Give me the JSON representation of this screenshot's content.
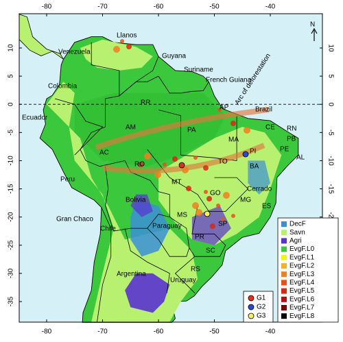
{
  "lon_ticks": [
    -80,
    -70,
    -60,
    -50,
    -40
  ],
  "lat_ticks": [
    10,
    5,
    0,
    -5,
    -10,
    -15,
    -20,
    -25,
    -30,
    -35
  ],
  "north": "N",
  "labels": [
    "Llanos",
    "Venezuela",
    "Guyana",
    "Suriname",
    "French Guiana",
    "Colombia",
    "RR",
    "AP",
    "Brazil",
    "Ecuador",
    "AM",
    "PA",
    "MA",
    "CE",
    "RN",
    "PB",
    "PE",
    "AL",
    "PI",
    "TO",
    "BA",
    "AC",
    "RO",
    "MT",
    "Peru",
    "Cerrado",
    "GO",
    "MG",
    "ES",
    "Bolivia",
    "MS",
    "SP",
    "Gran Chaco",
    "Paraguay",
    "Chile",
    "PR",
    "SC",
    "Argentina",
    "RS",
    "Uruguay",
    "Arc of deforestation"
  ],
  "legend": [
    {
      "name": "DecF",
      "color": "#3a8fd8"
    },
    {
      "name": "Savn",
      "color": "#b8f070"
    },
    {
      "name": "Agri",
      "color": "#5a32d2"
    },
    {
      "name": "EvgF.L0",
      "color": "#3cc83c"
    },
    {
      "name": "EvgF.L1",
      "color": "#f2f21e"
    },
    {
      "name": "EvgF.L2",
      "color": "#f0b428"
    },
    {
      "name": "EvgF.L3",
      "color": "#f08020"
    },
    {
      "name": "EvgF.L4",
      "color": "#e8501a"
    },
    {
      "name": "EvgF.L5",
      "color": "#d82814"
    },
    {
      "name": "EvgF.L6",
      "color": "#b01010"
    },
    {
      "name": "EvgF.L7",
      "color": "#780000"
    },
    {
      "name": "EvgF.L8",
      "color": "#000000"
    }
  ],
  "groups": [
    {
      "name": "G1",
      "color": "#e03020"
    },
    {
      "name": "G2",
      "color": "#2a4ad0"
    },
    {
      "name": "G3",
      "color": "#f8f060"
    }
  ]
}
